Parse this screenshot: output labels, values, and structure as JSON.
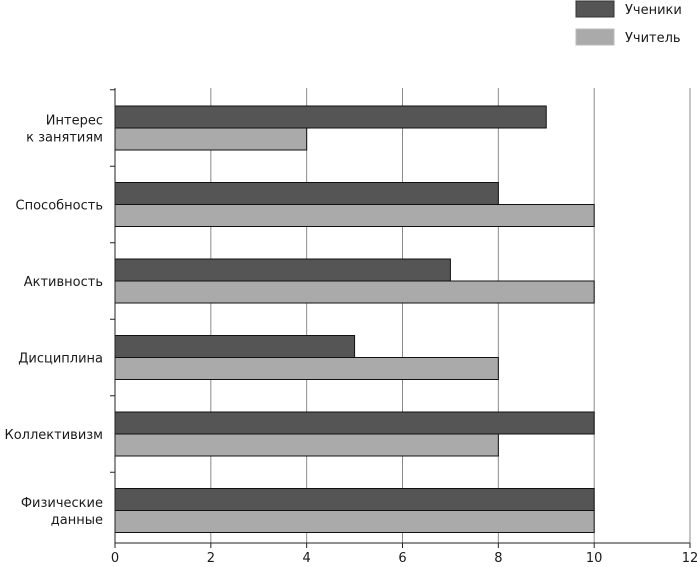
{
  "chart_data": {
    "type": "bar",
    "orientation": "horizontal",
    "categories": [
      [
        "Интерес",
        "к занятиям"
      ],
      [
        "Способность"
      ],
      [
        "Активность"
      ],
      [
        "Дисциплина"
      ],
      [
        "Коллективизм"
      ],
      [
        "Физические",
        "данные"
      ]
    ],
    "series": [
      {
        "name": "Ученики",
        "color": "#555555",
        "values": [
          9,
          8,
          7,
          5,
          10,
          10
        ]
      },
      {
        "name": "Учитель",
        "color": "#aaaaaa",
        "values": [
          4,
          10,
          10,
          8,
          8,
          10
        ]
      }
    ],
    "xlim": [
      0,
      12
    ],
    "xticks": [
      0,
      2,
      4,
      6,
      8,
      10,
      12
    ],
    "grid": "vertical",
    "legend_position": "top-right",
    "title": "",
    "xlabel": "",
    "ylabel": ""
  }
}
